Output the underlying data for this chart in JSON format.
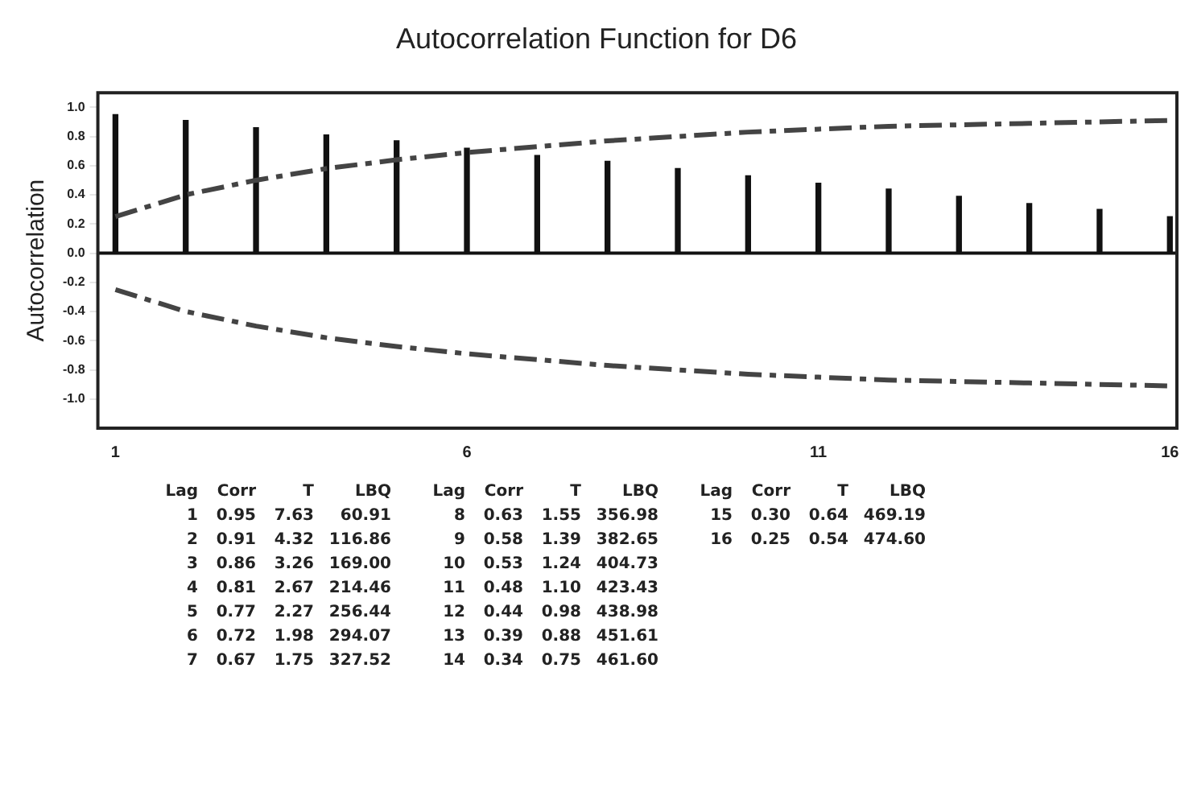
{
  "chart_data": {
    "type": "bar",
    "title": "Autocorrelation Function for D6",
    "ylabel": "Autocorrelation",
    "x": [
      1,
      2,
      3,
      4,
      5,
      6,
      7,
      8,
      9,
      10,
      11,
      12,
      13,
      14,
      15,
      16
    ],
    "xlim": [
      0.75,
      16.1
    ],
    "xticks": [
      1,
      6,
      11,
      16
    ],
    "ylim": [
      -1.2,
      1.1
    ],
    "yticks": [
      {
        "value": -1,
        "label": "-1.0"
      },
      {
        "value": -0.8,
        "label": "-0.8"
      },
      {
        "value": -0.6,
        "label": "-0.6"
      },
      {
        "value": -0.4,
        "label": "-0.4"
      },
      {
        "value": -0.2,
        "label": "-0.2"
      },
      {
        "value": 0,
        "label": "0.0"
      },
      {
        "value": 0.2,
        "label": "0.2"
      },
      {
        "value": 0.4,
        "label": "0.4"
      },
      {
        "value": 0.6,
        "label": "0.6"
      },
      {
        "value": 0.8,
        "label": "0.8"
      },
      {
        "value": 1,
        "label": "1.0"
      }
    ],
    "series": [
      {
        "color": "#111111",
        "values": [
          0.95,
          0.91,
          0.86,
          0.81,
          0.77,
          0.72,
          0.67,
          0.63,
          0.58,
          0.53,
          0.48,
          0.44,
          0.39,
          0.34,
          0.3,
          0.25
        ]
      },
      {
        "type": "line",
        "color": "#444444",
        "line_style": "dashed",
        "marker": "none",
        "values": [
          0.25,
          0.4,
          0.5,
          0.58,
          0.64,
          0.69,
          0.73,
          0.77,
          0.8,
          0.83,
          0.85,
          0.87,
          0.88,
          0.89,
          0.9,
          0.91
        ]
      },
      {
        "type": "line",
        "color": "#444444",
        "line_style": "dashed",
        "marker": "none",
        "values": [
          -0.25,
          -0.4,
          -0.5,
          -0.58,
          -0.64,
          -0.69,
          -0.73,
          -0.77,
          -0.8,
          -0.83,
          -0.85,
          -0.87,
          -0.88,
          -0.89,
          -0.9,
          -0.91
        ]
      }
    ],
    "ref_lines": [
      {
        "axis": "y",
        "value": 0,
        "color": "#111111"
      }
    ],
    "grid": false,
    "legend": false,
    "annotations": [
      "Lag Corr T LBQ",
      "1 0.95 7.63 60.91",
      "2 0.91 4.32 116.86",
      "3 0.86 3.26 169.00",
      "4 0.81 2.67 214.46",
      "5 0.77 2.27 256.44",
      "6 0.72 1.98 294.07",
      "7 0.67 1.75 327.52",
      "Lag Corr T LBQ",
      "8 0.63 1.55 356.98",
      "9 0.58 1.39 382.65",
      "10 0.53 1.24 404.73",
      "11 0.48 1.10 423.43",
      "12 0.44 0.98 438.98",
      "13 0.39 0.88 451.61",
      "14 0.34 0.75 461.60",
      "Lag Corr T LBQ",
      "15 0.30 0.64 469.19",
      "16 0.25 0.54 474.60"
    ]
  }
}
